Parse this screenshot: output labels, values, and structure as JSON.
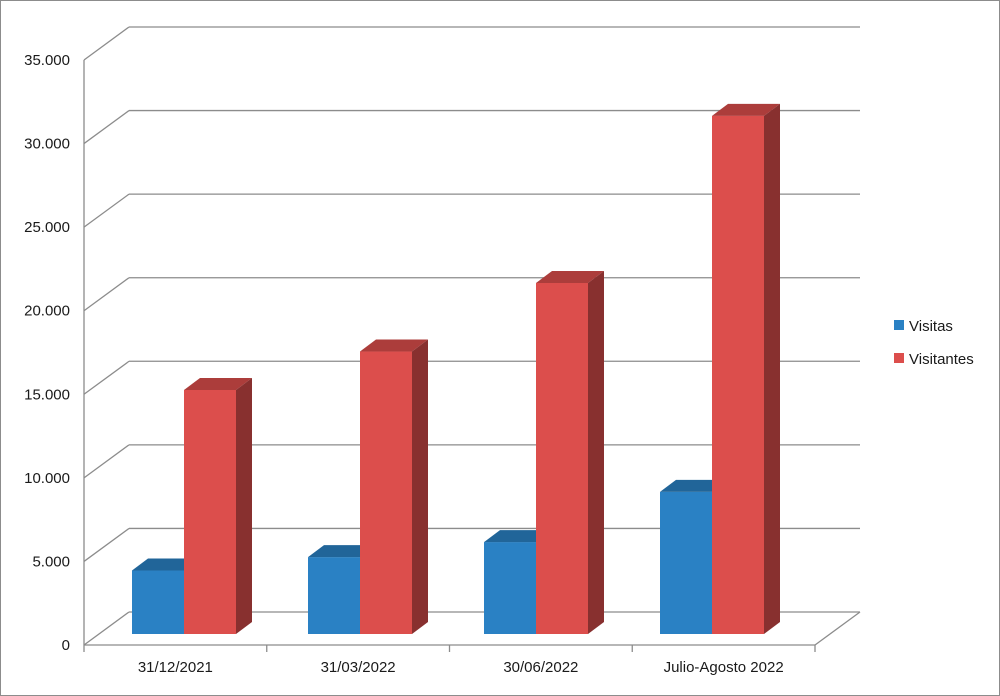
{
  "chart_data": {
    "type": "bar",
    "style": "3d-clustered-column",
    "categories": [
      "31/12/2021",
      "31/03/2022",
      "30/06/2022",
      "Julio-Agosto 2022"
    ],
    "series": [
      {
        "name": "Visitas",
        "color": "#2a81c4",
        "values": [
          3800,
          4600,
          5500,
          8500
        ]
      },
      {
        "name": "Visitantes",
        "color": "#dc4e4c",
        "values": [
          14600,
          16900,
          21000,
          31000
        ]
      }
    ],
    "y_ticks": [
      "0",
      "5.000",
      "10.000",
      "15.000",
      "20.000",
      "25.000",
      "30.000",
      "35.000"
    ],
    "ylim": [
      0,
      35000
    ],
    "grid": true,
    "legend_position": "right"
  }
}
